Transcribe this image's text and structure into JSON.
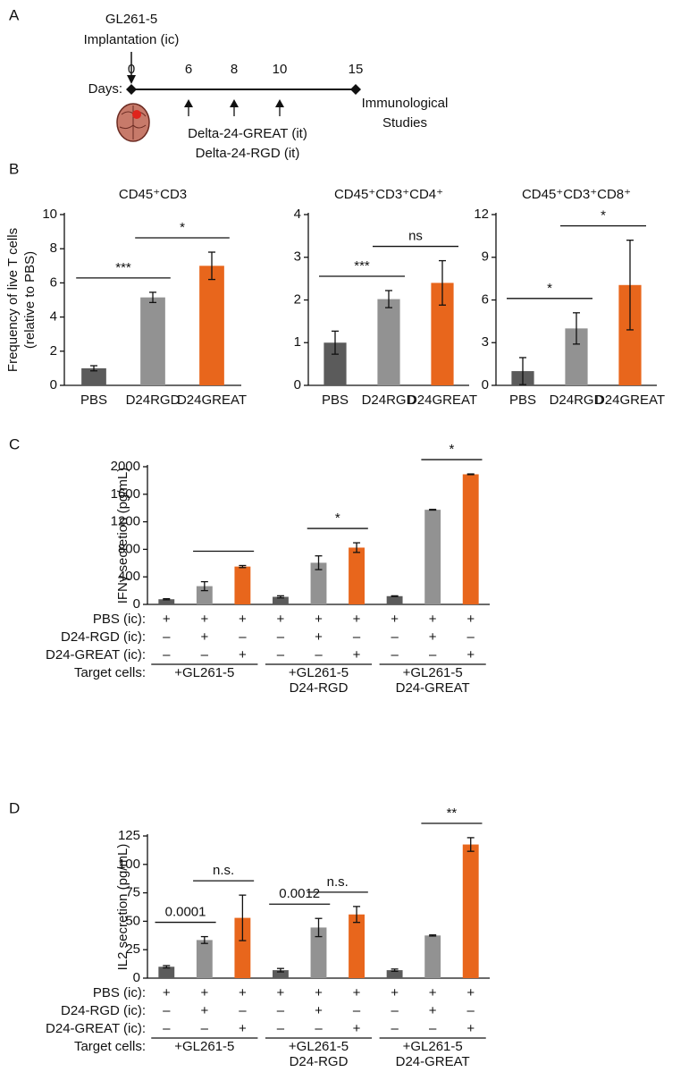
{
  "panel_labels": [
    "A",
    "B",
    "C",
    "D"
  ],
  "timeline": {
    "implant_lines": [
      "GL261-5",
      "Implantation (ic)"
    ],
    "days_label": "Days:",
    "days": [
      "0",
      "6",
      "8",
      "10",
      "15"
    ],
    "treatment_lines": [
      "Delta-24-GREAT (it)",
      "Delta-24-RGD (it)"
    ],
    "endpoint_lines": [
      "Immunological",
      "Studies"
    ]
  },
  "chart_data": [
    {
      "type": "bar",
      "title": "CD45⁺CD3",
      "ylabel": [
        "Frequency of live T cells",
        "(relative to PBS)"
      ],
      "categories": [
        "PBS",
        "D24RGD",
        "D24GREAT"
      ],
      "values": [
        1.0,
        5.15,
        7.0
      ],
      "errors": [
        0.15,
        0.3,
        0.8
      ],
      "colors": [
        "#5b5b5b",
        "#929292",
        "#e8661c"
      ],
      "ylim": [
        0,
        10
      ],
      "yticks": [
        0,
        2,
        4,
        6,
        8,
        10
      ],
      "brackets": [
        {
          "from": 0,
          "to": 1,
          "label": "***"
        },
        {
          "from": 1,
          "to": 2,
          "label": "*"
        }
      ]
    },
    {
      "type": "bar",
      "title": "CD45⁺CD3⁺CD4⁺",
      "categories": [
        "PBS",
        "D24RGD",
        "D24GREAT"
      ],
      "values": [
        1.0,
        2.02,
        2.4
      ],
      "errors": [
        0.27,
        0.2,
        0.52
      ],
      "colors": [
        "#5b5b5b",
        "#929292",
        "#e8661c"
      ],
      "ylim": [
        0,
        4
      ],
      "yticks": [
        0,
        1,
        2,
        3,
        4
      ],
      "brackets": [
        {
          "from": 0,
          "to": 1,
          "label": "***"
        },
        {
          "from": 1,
          "to": 2,
          "label": "ns"
        }
      ]
    },
    {
      "type": "bar",
      "title": "CD45⁺CD3⁺CD8⁺",
      "categories": [
        "PBS",
        "D24RGD",
        "D24GREAT"
      ],
      "values": [
        1.0,
        4.0,
        7.05
      ],
      "errors": [
        0.95,
        1.1,
        3.15
      ],
      "colors": [
        "#5b5b5b",
        "#929292",
        "#e8661c"
      ],
      "ylim": [
        0,
        12
      ],
      "yticks": [
        0,
        3,
        6,
        9,
        12
      ],
      "brackets": [
        {
          "from": 0,
          "to": 1,
          "label": "*"
        },
        {
          "from": 1,
          "to": 2,
          "label": "*"
        }
      ]
    },
    {
      "type": "bar",
      "ylabel": "IFNγ secretion (pg/mL)",
      "values": [
        75,
        265,
        550,
        110,
        605,
        825,
        120,
        1375,
        1890
      ],
      "errors": [
        8,
        65,
        15,
        15,
        100,
        70,
        5,
        5,
        5
      ],
      "colors": [
        "#5b5b5b",
        "#929292",
        "#e8661c",
        "#5b5b5b",
        "#929292",
        "#e8661c",
        "#5b5b5b",
        "#929292",
        "#e8661c"
      ],
      "ylim": [
        0,
        2000
      ],
      "yticks": [
        0,
        400,
        800,
        1200,
        1600,
        2000
      ],
      "brackets": [
        {
          "from": 1,
          "to": 2
        },
        {
          "from": 4,
          "to": 5,
          "label": "*"
        },
        {
          "from": 7,
          "to": 8,
          "label": "*"
        }
      ],
      "conditions": {
        "rows": [
          {
            "label": "PBS (ic):",
            "values": [
              "+",
              "+",
              "+",
              "+",
              "+",
              "+",
              "+",
              "+",
              "+"
            ]
          },
          {
            "label": "D24-RGD (ic):",
            "values": [
              "–",
              "+",
              "–",
              "–",
              "+",
              "–",
              "–",
              "+",
              "–"
            ]
          },
          {
            "label": "D24-GREAT (ic):",
            "values": [
              "–",
              "–",
              "+",
              "–",
              "–",
              "+",
              "–",
              "–",
              "+"
            ]
          }
        ],
        "target_label": "Target cells:",
        "groups": [
          [
            "+GL261-5"
          ],
          [
            "+GL261-5",
            "D24-RGD"
          ],
          [
            "+GL261-5",
            "D24-GREAT"
          ]
        ]
      }
    },
    {
      "type": "bar",
      "ylabel": "IL2 secretion (pg/mL)",
      "values": [
        10,
        33.5,
        53,
        7,
        44.5,
        56,
        7,
        37.5,
        117.5
      ],
      "errors": [
        1,
        3,
        20,
        1.5,
        8,
        7,
        1,
        0.5,
        6
      ],
      "colors": [
        "#5b5b5b",
        "#929292",
        "#e8661c",
        "#5b5b5b",
        "#929292",
        "#e8661c",
        "#5b5b5b",
        "#929292",
        "#e8661c"
      ],
      "ylim": [
        0,
        125
      ],
      "yticks": [
        0,
        25,
        50,
        75,
        100,
        125
      ],
      "brackets": [
        {
          "from": 0,
          "to": 1,
          "label": "0.0001"
        },
        {
          "from": 1,
          "to": 2,
          "label": "n.s."
        },
        {
          "from": 3,
          "to": 4,
          "label": "0.0012"
        },
        {
          "from": 4,
          "to": 5,
          "label": "n.s."
        },
        {
          "from": 7,
          "to": 8,
          "label": "**"
        }
      ],
      "conditions": {
        "rows": [
          {
            "label": "PBS (ic):",
            "values": [
              "+",
              "+",
              "+",
              "+",
              "+",
              "+",
              "+",
              "+",
              "+"
            ]
          },
          {
            "label": "D24-RGD (ic):",
            "values": [
              "–",
              "+",
              "–",
              "–",
              "+",
              "–",
              "–",
              "+",
              "–"
            ]
          },
          {
            "label": "D24-GREAT (ic):",
            "values": [
              "–",
              "–",
              "+",
              "–",
              "–",
              "+",
              "–",
              "–",
              "+"
            ]
          }
        ],
        "target_label": "Target cells:",
        "groups": [
          [
            "+GL261-5"
          ],
          [
            "+GL261-5",
            "D24-RGD"
          ],
          [
            "+GL261-5",
            "D24-GREAT"
          ]
        ]
      }
    }
  ]
}
